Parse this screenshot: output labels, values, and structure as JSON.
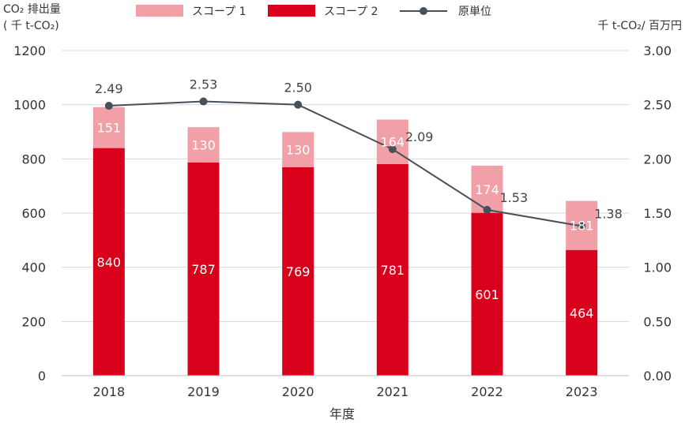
{
  "chart_data": {
    "type": "bar",
    "stacked": true,
    "categories": [
      "2018",
      "2019",
      "2020",
      "2021",
      "2022",
      "2023"
    ],
    "series": [
      {
        "name": "スコープ 2",
        "type": "bar",
        "axis": "left",
        "color": "#d9001b",
        "values": [
          840,
          787,
          769,
          781,
          601,
          464
        ]
      },
      {
        "name": "スコープ 1",
        "type": "bar",
        "axis": "left",
        "color": "#f0a0a6",
        "values": [
          151,
          130,
          130,
          164,
          174,
          181
        ]
      },
      {
        "name": "原単位",
        "type": "line",
        "axis": "right",
        "color": "#464f5a",
        "values": [
          2.49,
          2.53,
          2.5,
          2.09,
          1.53,
          1.38
        ],
        "labels": [
          "2.49",
          "2.53",
          "2.50",
          "2.09",
          "1.53",
          "1.38"
        ]
      }
    ],
    "legend_order": [
      "スコープ 1",
      "スコープ 2",
      "原単位"
    ],
    "legend_position": "top",
    "xlabel": "年度",
    "ylabel_left_line1": "CO₂ 排出量",
    "ylabel_left_line2": "( 千 t-CO₂)",
    "ylabel_right": "千 t-CO₂/ 百万円",
    "ylim_left": [
      0,
      1200
    ],
    "ylim_right": [
      0,
      3
    ],
    "yticks_left": [
      "0",
      "200",
      "400",
      "600",
      "800",
      "1000",
      "1200"
    ],
    "yticks_right": [
      "0.00",
      "0.50",
      "1.00",
      "1.50",
      "2.00",
      "2.50",
      "3.00"
    ],
    "grid": true
  }
}
